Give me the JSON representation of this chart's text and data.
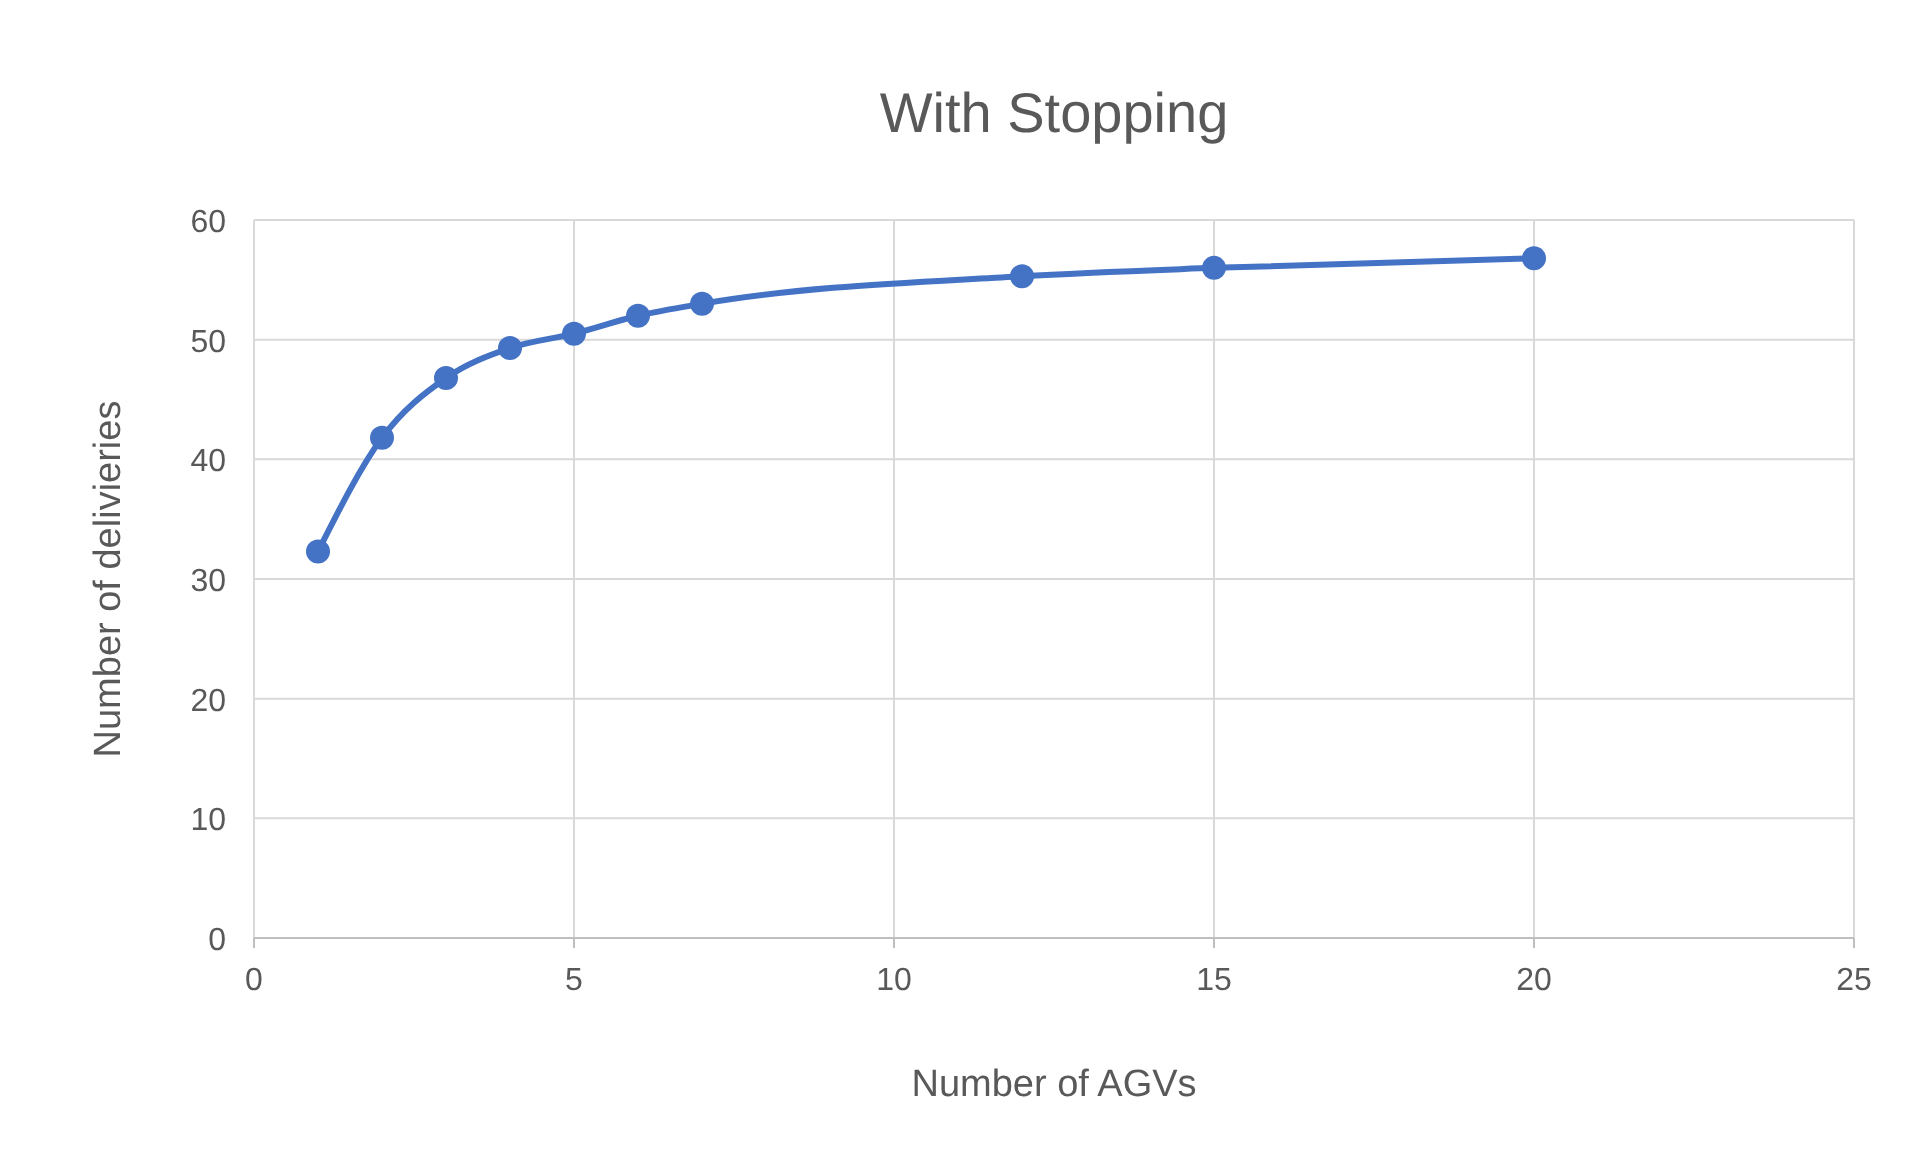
{
  "chart_data": {
    "type": "line",
    "title": "With Stopping",
    "xlabel": "Number of AGVs",
    "ylabel": "Number of delivieries",
    "x": [
      1,
      2,
      3,
      4,
      5,
      6,
      7,
      12,
      15,
      20
    ],
    "series": [
      {
        "color": "#4472c4",
        "values": [
          32.3,
          41.8,
          46.8,
          49.3,
          50.5,
          52.0,
          53.0,
          55.3,
          56.0,
          56.8
        ]
      }
    ],
    "xlim": [
      0,
      25
    ],
    "xticks": [
      0,
      5,
      10,
      15,
      20,
      25
    ],
    "ylim": [
      0,
      60
    ],
    "yticks": [
      0,
      10,
      20,
      30,
      40,
      50,
      60
    ],
    "grid": true,
    "marker": "circle",
    "line_style": "solid"
  }
}
